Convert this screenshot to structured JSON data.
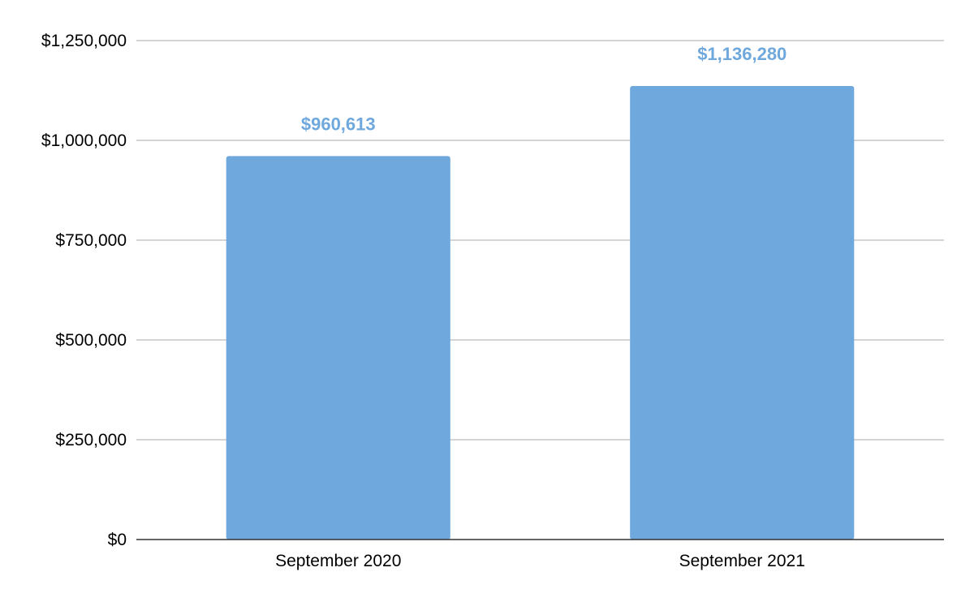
{
  "chart_data": {
    "type": "bar",
    "title": "",
    "xlabel": "",
    "ylabel": "",
    "categories": [
      "September 2020",
      "September 2021"
    ],
    "values": [
      960613,
      1136280
    ],
    "data_labels": [
      "$960,613",
      "$1,136,280"
    ],
    "ylim": [
      0,
      1250000
    ],
    "y_ticks": [
      0,
      250000,
      500000,
      750000,
      1000000,
      1250000
    ],
    "y_tick_labels": [
      "$0",
      "$250,000",
      "$500,000",
      "$750,000",
      "$1,000,000",
      "$1,250,000"
    ],
    "grid": true,
    "legend": "none",
    "colors": {
      "bar": "#6fa8dc",
      "data_label": "#6fa8dc",
      "grid": "#c6c6c6",
      "axis": "#333333",
      "text": "#000000"
    }
  }
}
